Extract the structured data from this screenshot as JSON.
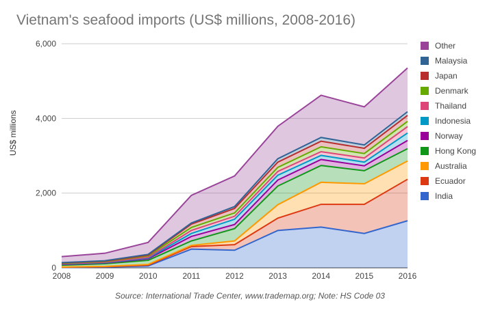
{
  "chart_data": {
    "type": "area",
    "title": "Vietnam's seafood imports (US$ millions, 2008-2016)",
    "xlabel": "",
    "ylabel": "US$ millions",
    "source": "Source: International Trade Center, www.trademap.org; Note: HS Code 03",
    "x": [
      "2008",
      "2009",
      "2010",
      "2011",
      "2012",
      "2013",
      "2014",
      "2015",
      "2016"
    ],
    "ylim": [
      0,
      6000
    ],
    "yticks": [
      "0",
      "2,000",
      "4,000",
      "6,000"
    ],
    "stacked": true,
    "grid": true,
    "legend_position": "right",
    "series": [
      {
        "name": "India",
        "color": "#3366cc",
        "values": [
          10,
          20,
          50,
          500,
          470,
          1000,
          1090,
          920,
          1260
        ]
      },
      {
        "name": "Ecuador",
        "color": "#dc3912",
        "values": [
          5,
          10,
          20,
          70,
          150,
          330,
          610,
          780,
          1110
        ]
      },
      {
        "name": "Australia",
        "color": "#ff9900",
        "values": [
          5,
          10,
          20,
          30,
          100,
          360,
          590,
          550,
          490
        ]
      },
      {
        "name": "Hong Kong",
        "color": "#109618",
        "values": [
          50,
          70,
          110,
          120,
          330,
          500,
          450,
          350,
          330
        ]
      },
      {
        "name": "Norway",
        "color": "#990099",
        "values": [
          20,
          20,
          40,
          120,
          110,
          160,
          160,
          130,
          220
        ]
      },
      {
        "name": "Indonesia",
        "color": "#0099c6",
        "values": [
          10,
          10,
          20,
          80,
          140,
          130,
          110,
          100,
          200
        ]
      },
      {
        "name": "Thailand",
        "color": "#dd4477",
        "values": [
          10,
          10,
          20,
          80,
          80,
          100,
          100,
          110,
          170
        ]
      },
      {
        "name": "Denmark",
        "color": "#66aa00",
        "values": [
          10,
          20,
          40,
          80,
          90,
          110,
          130,
          120,
          140
        ]
      },
      {
        "name": "Japan",
        "color": "#b82e2e",
        "values": [
          10,
          10,
          20,
          90,
          120,
          140,
          150,
          140,
          160
        ]
      },
      {
        "name": "Malaysia",
        "color": "#316395",
        "values": [
          10,
          10,
          20,
          30,
          50,
          90,
          100,
          90,
          100
        ]
      },
      {
        "name": "Other",
        "color": "#994499",
        "values": [
          160,
          200,
          320,
          740,
          820,
          870,
          1130,
          1020,
          1170
        ]
      }
    ]
  }
}
